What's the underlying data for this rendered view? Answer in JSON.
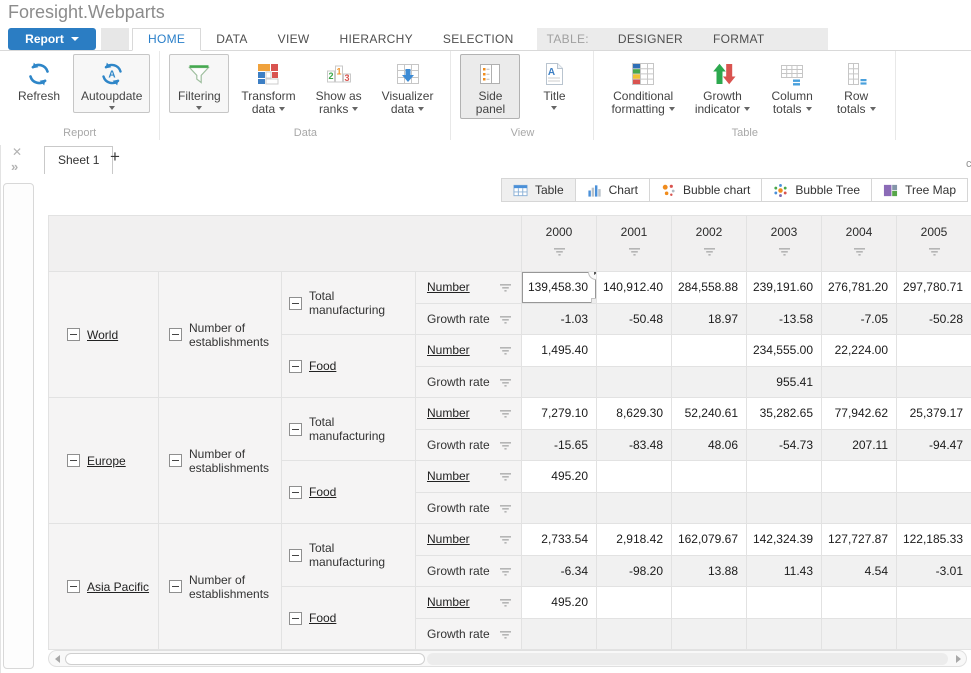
{
  "app": {
    "title": "Foresight.Webparts"
  },
  "report_menu": {
    "label": "Report"
  },
  "tabs": {
    "items": [
      "HOME",
      "DATA",
      "VIEW",
      "HIERARCHY",
      "SELECTION"
    ],
    "active": "HOME",
    "contextual_label": "TABLE:",
    "contextual_items": [
      "DESIGNER",
      "FORMAT"
    ]
  },
  "ribbon": {
    "groups": [
      {
        "label": "Report",
        "buttons": [
          {
            "label_lines": [
              "Refresh"
            ],
            "icon": "refresh-icon",
            "caret": "none",
            "framed": false,
            "pressed": false
          },
          {
            "label_lines": [
              "Autoupdate"
            ],
            "icon": "autoupdate-icon",
            "caret": "below",
            "framed": true,
            "pressed": false
          }
        ]
      },
      {
        "label": "Data",
        "buttons": [
          {
            "label_lines": [
              "Filtering"
            ],
            "icon": "filtering-funnel-icon",
            "caret": "below",
            "framed": true,
            "pressed": false
          },
          {
            "label_lines": [
              "Transform",
              "data"
            ],
            "icon": "transform-data-icon",
            "caret": "inline",
            "framed": false,
            "pressed": false
          },
          {
            "label_lines": [
              "Show as",
              "ranks"
            ],
            "icon": "show-as-ranks-icon",
            "caret": "inline",
            "framed": false,
            "pressed": false
          },
          {
            "label_lines": [
              "Visualizer",
              "data"
            ],
            "icon": "visualizer-data-icon",
            "caret": "inline",
            "framed": false,
            "pressed": false
          }
        ]
      },
      {
        "label": "View",
        "buttons": [
          {
            "label_lines": [
              "Side",
              "panel"
            ],
            "icon": "side-panel-icon",
            "caret": "none",
            "framed": true,
            "pressed": true
          },
          {
            "label_lines": [
              "Title"
            ],
            "icon": "title-icon",
            "caret": "below",
            "framed": false,
            "pressed": false
          }
        ]
      },
      {
        "label": "Table",
        "buttons": [
          {
            "label_lines": [
              "Conditional",
              "formatting"
            ],
            "icon": "conditional-formatting-icon",
            "caret": "inline",
            "framed": false,
            "pressed": false
          },
          {
            "label_lines": [
              "Growth",
              "indicator"
            ],
            "icon": "growth-indicator-icon",
            "caret": "inline",
            "framed": false,
            "pressed": false
          },
          {
            "label_lines": [
              "Column",
              "totals"
            ],
            "icon": "column-totals-icon",
            "caret": "inline",
            "framed": false,
            "pressed": false
          },
          {
            "label_lines": [
              "Row",
              "totals"
            ],
            "icon": "row-totals-icon",
            "caret": "inline",
            "framed": false,
            "pressed": false
          }
        ]
      }
    ]
  },
  "sheets": {
    "active_tab": "Sheet 1",
    "add_button": "+"
  },
  "view_switcher": {
    "buttons": [
      {
        "label": "Table",
        "icon": "table-view-icon",
        "active": true
      },
      {
        "label": "Chart",
        "icon": "chart-view-icon",
        "active": false
      },
      {
        "label": "Bubble chart",
        "icon": "bubble-chart-icon",
        "active": false
      },
      {
        "label": "Bubble Tree",
        "icon": "bubble-tree-icon",
        "active": false
      },
      {
        "label": "Tree Map",
        "icon": "tree-map-icon",
        "active": false
      }
    ]
  },
  "pivot": {
    "column_headers": [
      "2000",
      "2001",
      "2002",
      "2003",
      "2004",
      "2005"
    ],
    "measure_labels": {
      "number": "Number",
      "growth": "Growth rate"
    },
    "regions": [
      {
        "name": "World",
        "indicator": "Number of establishments",
        "industries": [
          {
            "name": "Total manufacturing",
            "number": [
              "139,458.30",
              "140,912.40",
              "284,558.88",
              "239,191.60",
              "276,781.20",
              "297,780.71"
            ],
            "growth": [
              "-1.03",
              "-50.48",
              "18.97",
              "-13.58",
              "-7.05",
              "-50.28"
            ]
          },
          {
            "name": "Food",
            "number": [
              "1,495.40",
              "",
              "",
              "234,555.00",
              "22,224.00",
              ""
            ],
            "growth": [
              "",
              "",
              "",
              "955.41",
              "",
              ""
            ]
          }
        ]
      },
      {
        "name": "Europe",
        "indicator": "Number of establishments",
        "industries": [
          {
            "name": "Total manufacturing",
            "number": [
              "7,279.10",
              "8,629.30",
              "52,240.61",
              "35,282.65",
              "77,942.62",
              "25,379.17"
            ],
            "growth": [
              "-15.65",
              "-83.48",
              "48.06",
              "-54.73",
              "207.11",
              "-94.47"
            ]
          },
          {
            "name": "Food",
            "number": [
              "495.20",
              "",
              "",
              "",
              "",
              ""
            ],
            "growth": [
              "",
              "",
              "",
              "",
              "",
              ""
            ]
          }
        ]
      },
      {
        "name": "Asia Pacific",
        "indicator": "Number of establishments",
        "industries": [
          {
            "name": "Total manufacturing",
            "number": [
              "2,733.54",
              "2,918.42",
              "162,079.67",
              "142,324.39",
              "127,727.87",
              "122,185.33"
            ],
            "growth": [
              "-6.34",
              "-98.20",
              "13.88",
              "11.43",
              "4.54",
              "-3.01"
            ]
          },
          {
            "name": "Food",
            "number": [
              "495.20",
              "",
              "",
              "",
              "",
              ""
            ],
            "growth": [
              "",
              "",
              "",
              "",
              "",
              ""
            ]
          }
        ]
      }
    ],
    "selected_cell": {
      "region": "World",
      "industry": "Total manufacturing",
      "measure": "Number",
      "year": "2000",
      "value": "139,458.30"
    }
  },
  "misc": {
    "clipped_edge_text": "c"
  },
  "colors": {
    "accent_blue": "#2b7dc3",
    "growth_up_green": "#2ca84e",
    "growth_down_red": "#d9534f",
    "orange": "#f08c1d"
  }
}
